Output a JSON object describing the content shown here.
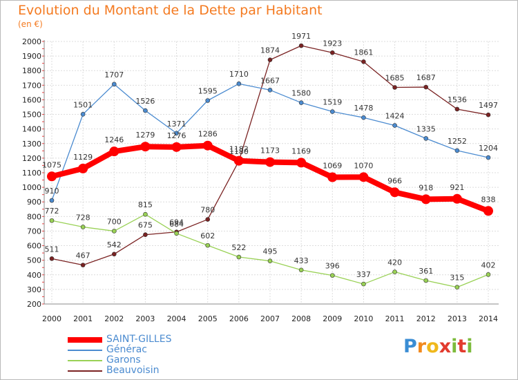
{
  "header": {
    "title": "Evolution du Montant de la Dette par Habitant",
    "unit": "(en €)"
  },
  "logo": {
    "text": "Proxiti",
    "letters": [
      "P",
      "r",
      "o",
      "x",
      "i",
      "t",
      "i"
    ]
  },
  "colors": {
    "title": "#f47a20",
    "legend_text": "#4b8bd0",
    "logo_letters": [
      "#3a8dd4",
      "#f28a1e",
      "#f0b81c",
      "#e23b2e",
      "#7dbb3c",
      "#e23b2e",
      "#7dbb3c"
    ]
  },
  "chart_data": {
    "type": "line",
    "x": [
      "2000",
      "2001",
      "2002",
      "2003",
      "2004",
      "2005",
      "2006",
      "2007",
      "2008",
      "2009",
      "2010",
      "2011",
      "2012",
      "2013",
      "2014"
    ],
    "ylim": [
      200,
      2000
    ],
    "yticks": [
      "200",
      "300",
      "400",
      "500",
      "600",
      "700",
      "800",
      "900",
      "1000",
      "1100",
      "1200",
      "1300",
      "1400",
      "1500",
      "1600",
      "1700",
      "1800",
      "1900",
      "2000"
    ],
    "grid": true,
    "legend_position": "bottom-left",
    "series": [
      {
        "name": "SAINT-GILLES",
        "color": "#ff0000",
        "width": 8,
        "marker": 7,
        "values": [
          1075,
          1129,
          1246,
          1279,
          1276,
          1286,
          1182,
          1173,
          1169,
          1069,
          1070,
          966,
          918,
          921,
          838
        ],
        "labels": [
          "1075",
          "1129",
          "1246",
          "1279",
          "1276",
          "1286",
          "1182",
          "1173",
          "1169",
          "1069",
          "1070",
          "966",
          "918",
          "921",
          "838"
        ]
      },
      {
        "name": "Générac",
        "color": "#4b8bd0",
        "width": 1.3,
        "marker": 3,
        "values": [
          910,
          1501,
          1707,
          1526,
          1371,
          1595,
          1710,
          1667,
          1580,
          1519,
          1478,
          1424,
          1335,
          1252,
          1204
        ],
        "labels": [
          "910",
          "1501",
          "1707",
          "1526",
          "1371",
          "1595",
          "1710",
          "1667",
          "1580",
          "1519",
          "1478",
          "1424",
          "1335",
          "1252",
          "1204"
        ]
      },
      {
        "name": "Garons",
        "color": "#99d155",
        "width": 1.3,
        "marker": 3,
        "values": [
          772,
          728,
          700,
          815,
          684,
          602,
          522,
          495,
          433,
          396,
          337,
          420,
          361,
          315,
          402
        ],
        "labels": [
          "772",
          "728",
          "700",
          "815",
          "684",
          "602",
          "522",
          "495",
          "433",
          "396",
          "337",
          "420",
          "361",
          "315",
          "402"
        ]
      },
      {
        "name": "Beauvoisin",
        "color": "#7a2222",
        "width": 1.3,
        "marker": 3,
        "values": [
          511,
          467,
          542,
          675,
          694,
          780,
          1180,
          1874,
          1971,
          1923,
          1861,
          1685,
          1687,
          1536,
          1497
        ],
        "labels": [
          "511",
          "467",
          "542",
          "675",
          "694",
          "780",
          "1180",
          "1874",
          "1971",
          "1923",
          "1861",
          "1685",
          "1687",
          "1536",
          "1497"
        ]
      }
    ]
  }
}
